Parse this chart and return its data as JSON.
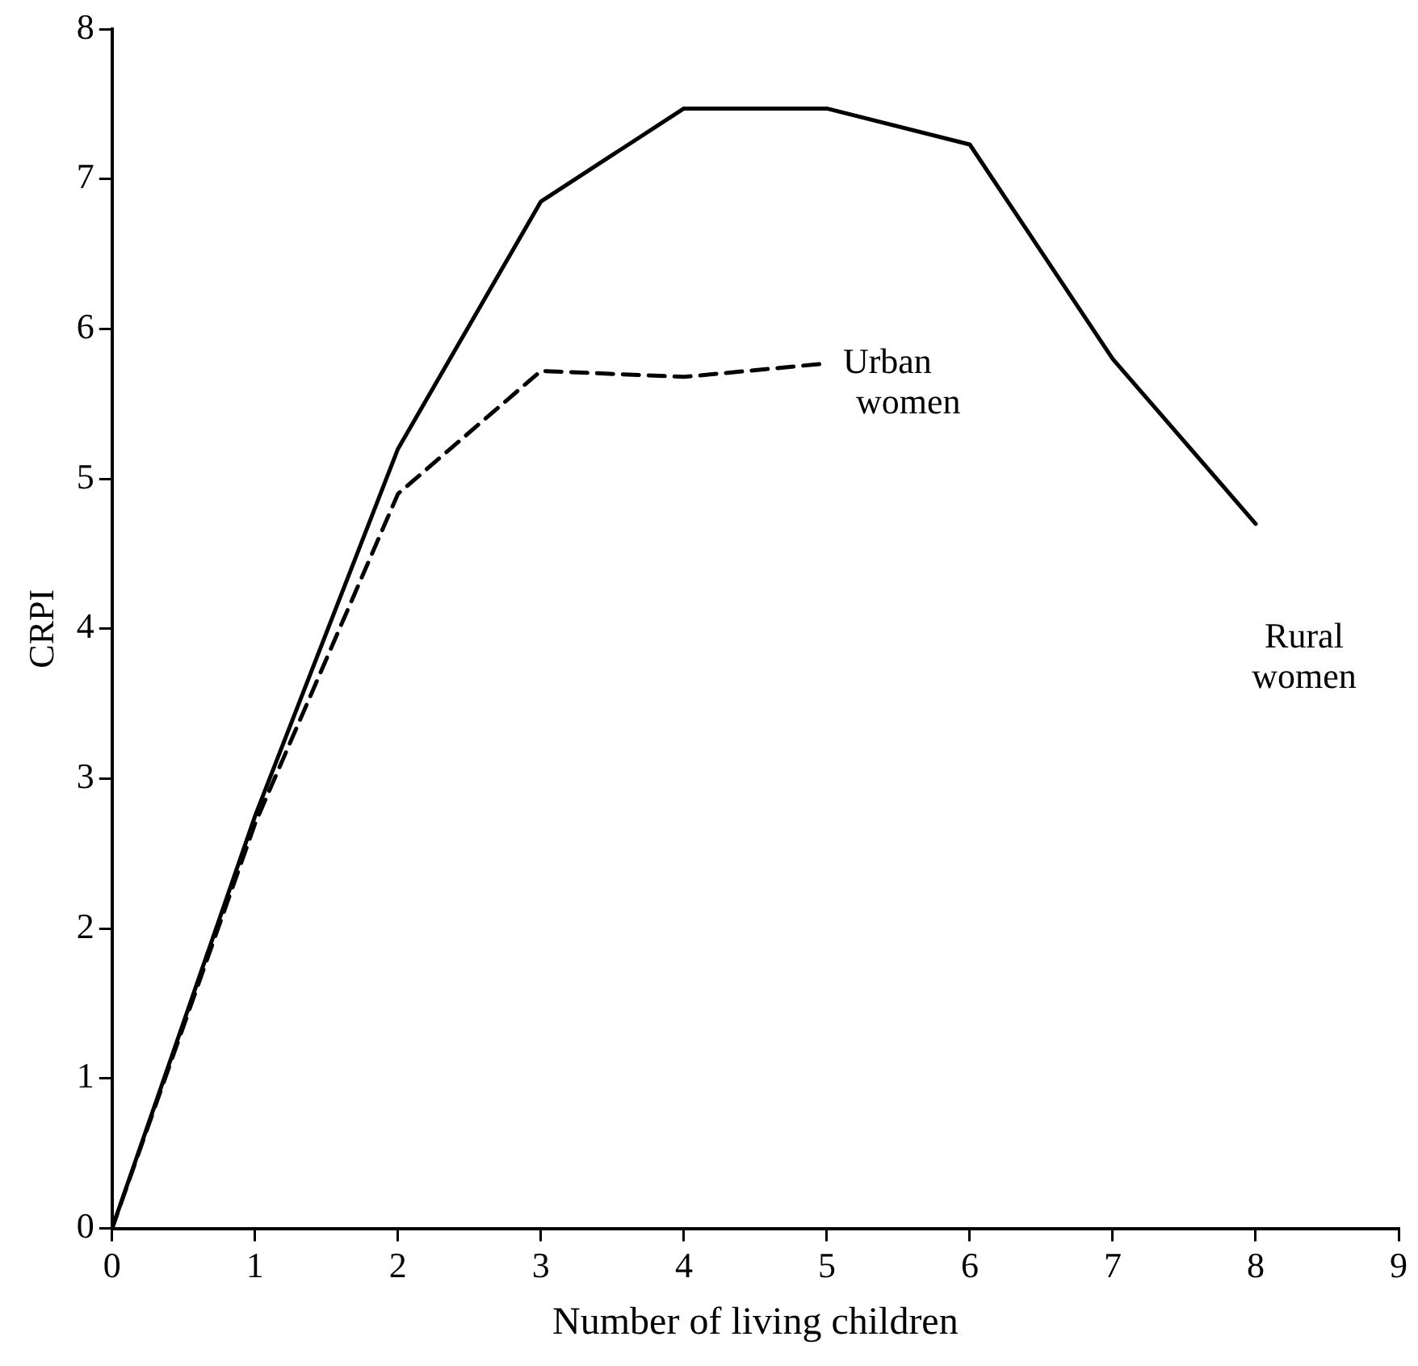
{
  "chart_data": {
    "type": "line",
    "xlabel": "Number of living children",
    "ylabel": "CRPI",
    "xlim": [
      0,
      9
    ],
    "ylim": [
      0,
      8
    ],
    "xticks": [
      0,
      1,
      2,
      3,
      4,
      5,
      6,
      7,
      8,
      9
    ],
    "yticks": [
      0,
      1,
      2,
      3,
      4,
      5,
      6,
      7,
      8
    ],
    "grid": false,
    "legend": false,
    "marker": "none",
    "series": [
      {
        "name": "Rural women",
        "color": "#000000",
        "line_style": "solid",
        "x": [
          0,
          1,
          2,
          3,
          4,
          5,
          6,
          7,
          8
        ],
        "values": [
          0,
          2.75,
          5.2,
          6.85,
          7.47,
          7.47,
          7.23,
          5.8,
          4.7
        ]
      },
      {
        "name": "Urban women",
        "color": "#000000",
        "line_style": "dashed",
        "x": [
          0,
          1,
          2,
          3,
          4,
          5
        ],
        "values": [
          0,
          2.7,
          4.9,
          5.72,
          5.68,
          5.77
        ]
      }
    ]
  }
}
